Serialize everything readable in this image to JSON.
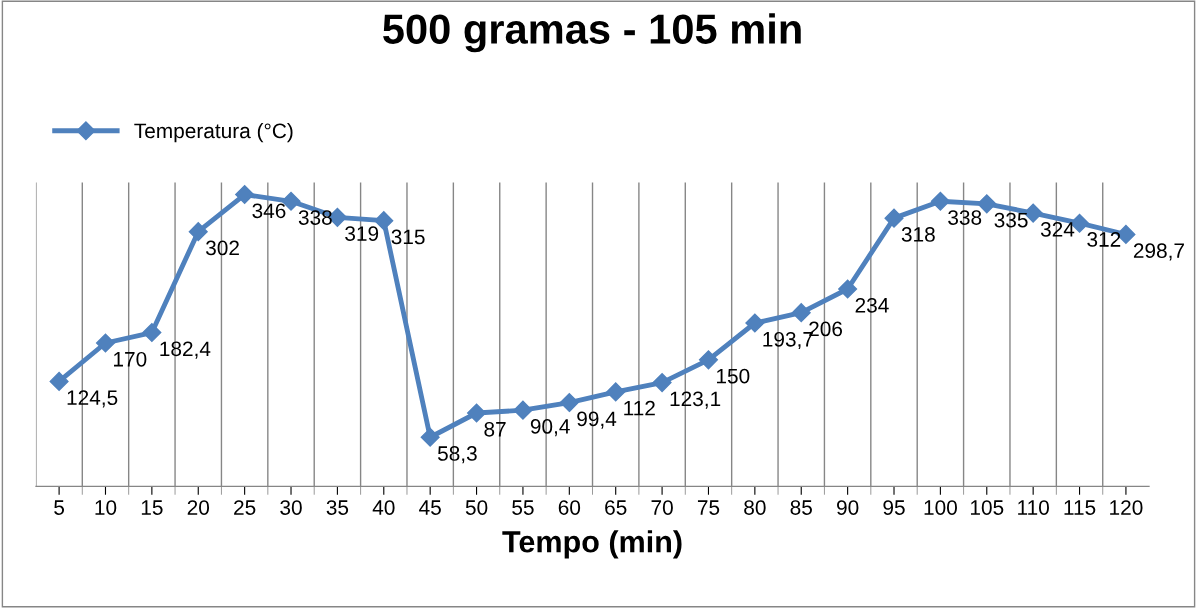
{
  "chart_data": {
    "type": "line",
    "title": "500 gramas - 105 min",
    "xlabel": "Tempo (min)",
    "categories": [
      "5",
      "10",
      "15",
      "20",
      "25",
      "30",
      "35",
      "40",
      "45",
      "50",
      "55",
      "60",
      "65",
      "70",
      "75",
      "80",
      "85",
      "90",
      "95",
      "100",
      "105",
      "110",
      "115",
      "120"
    ],
    "series": [
      {
        "name": "Temperatura (°C)",
        "color": "#4f81bd",
        "values": [
          124.5,
          170,
          182.4,
          302,
          346,
          338,
          319,
          315,
          58.3,
          87,
          90.4,
          99.4,
          112,
          123.1,
          150,
          193.7,
          206,
          234,
          318,
          338,
          335,
          324,
          312,
          298.7
        ],
        "value_labels": [
          "124,5",
          "170",
          "182,4",
          "302",
          "346",
          "338",
          "319",
          "315",
          "58,3",
          "87",
          "90,4",
          "99,4",
          "112",
          "123,1",
          "150",
          "193,7",
          "206",
          "234",
          "318",
          "338",
          "335",
          "324",
          "312",
          "298,7"
        ]
      }
    ],
    "tick_labels": "x",
    "grid": "x",
    "legend": "top left",
    "marker": "diamond",
    "line_style": "solid"
  }
}
